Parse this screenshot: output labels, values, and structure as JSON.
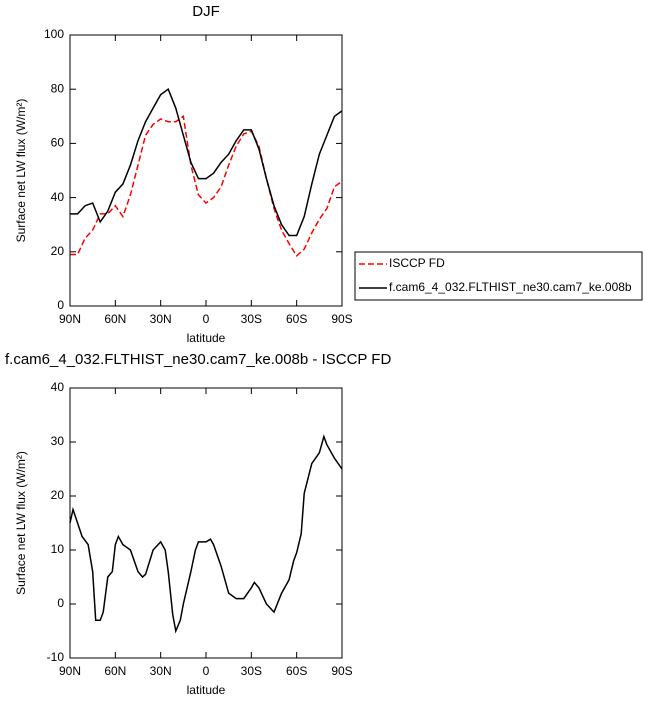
{
  "chart_data": [
    {
      "type": "line",
      "title": "DJF",
      "xlabel": "latitude",
      "ylabel": "Surface net LW flux (W/m²)",
      "x": [
        90,
        85,
        80,
        75,
        70,
        65,
        60,
        55,
        50,
        45,
        40,
        35,
        30,
        25,
        20,
        15,
        10,
        5,
        0,
        -5,
        -10,
        -15,
        -20,
        -25,
        -30,
        -35,
        -40,
        -45,
        -50,
        -55,
        -60,
        -65,
        -70,
        -75,
        -80,
        -85,
        -90
      ],
      "series": [
        {
          "name": "ISCCP FD",
          "color": "#ff0000",
          "line_style": "dashed",
          "values": [
            19,
            19,
            25,
            28,
            34,
            34,
            37,
            33,
            41,
            52,
            63,
            67,
            69,
            68,
            68,
            70,
            52,
            41,
            38,
            40,
            44,
            52,
            59,
            63.5,
            64.5,
            59,
            47,
            36,
            28,
            23,
            18.5,
            21,
            27,
            32,
            36,
            44,
            46
          ]
        },
        {
          "name": "f.cam6_4_032.FLTHIST_ne30.cam7_ke.008b",
          "color": "#000000",
          "line_style": "solid",
          "values": [
            34,
            34,
            37,
            38,
            31,
            35,
            42,
            45,
            52,
            61,
            68,
            73,
            78,
            80,
            73,
            63,
            53,
            47,
            47,
            49,
            53,
            56,
            61,
            65,
            65,
            58,
            47,
            37,
            30,
            26,
            26,
            33,
            45,
            56,
            63,
            70,
            72
          ]
        }
      ],
      "xlim": [
        90,
        -90
      ],
      "xticks": [
        {
          "value": 90,
          "label": "90N"
        },
        {
          "value": 60,
          "label": "60N"
        },
        {
          "value": 30,
          "label": "30N"
        },
        0,
        {
          "value": -30,
          "label": "30S"
        },
        {
          "value": -60,
          "label": "60S"
        },
        {
          "value": -90,
          "label": "90S"
        }
      ],
      "ylim": [
        0,
        100
      ],
      "yticks": [
        0,
        20,
        40,
        60,
        80,
        100
      ],
      "legend": "right"
    },
    {
      "type": "line",
      "title": "f.cam6_4_032.FLTHIST_ne30.cam7_ke.008b - ISCCP FD",
      "xlabel": "latitude",
      "ylabel": "Surface net LW flux (W/m²)",
      "x": [
        90,
        88,
        85,
        82,
        78,
        75,
        73,
        70,
        68,
        65,
        62,
        60,
        58,
        55,
        50,
        45,
        42,
        40,
        35,
        30,
        27,
        25,
        22,
        20,
        17,
        15,
        10,
        7,
        5,
        0,
        -3,
        -5,
        -10,
        -15,
        -20,
        -23,
        -25,
        -30,
        -32,
        -35,
        -40,
        -45,
        -50,
        -55,
        -58,
        -60,
        -63,
        -65,
        -70,
        -75,
        -78,
        -80,
        -85,
        -90
      ],
      "series": [
        {
          "name": "f.cam6_4_032.FLTHIST_ne30.cam7_ke.008b - ISCCP FD",
          "color": "#000000",
          "line_style": "solid",
          "values": [
            15,
            17.5,
            15,
            12.5,
            11,
            6,
            -3,
            -3,
            -1.5,
            5,
            6,
            11,
            12.5,
            11,
            10,
            6,
            5,
            5.5,
            10,
            11.5,
            10,
            6,
            -2,
            -5,
            -3,
            0,
            6,
            10,
            11.5,
            11.5,
            12,
            11,
            7,
            2,
            1,
            1,
            1,
            3,
            4,
            3,
            0,
            -1.5,
            2,
            4.5,
            8,
            9.5,
            13,
            20.5,
            26,
            28,
            31,
            29.5,
            27,
            25
          ]
        }
      ],
      "xlim": [
        90,
        -90
      ],
      "xticks": [
        {
          "value": 90,
          "label": "90N"
        },
        {
          "value": 60,
          "label": "60N"
        },
        {
          "value": 30,
          "label": "30N"
        },
        0,
        {
          "value": -30,
          "label": "30S"
        },
        {
          "value": -60,
          "label": "60S"
        },
        {
          "value": -90,
          "label": "90S"
        }
      ],
      "ylim": [
        -10,
        40
      ],
      "yticks": [
        -10,
        0,
        10,
        20,
        30,
        40
      ]
    }
  ]
}
